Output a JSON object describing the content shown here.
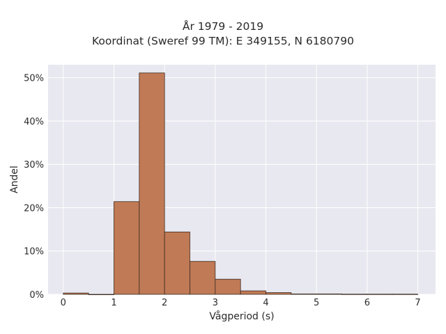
{
  "chart_data": {
    "type": "bar",
    "title_lines": [
      "År 1979 - 2019",
      "Koordinat (Sweref 99 TM): E 349155, N 6180790"
    ],
    "xlabel": "Vågperiod (s)",
    "ylabel": "Andel",
    "xlim": [
      -0.3,
      7.35
    ],
    "ylim": [
      0,
      53
    ],
    "x_ticks": [
      0,
      1,
      2,
      3,
      4,
      5,
      6,
      7
    ],
    "y_ticks": [
      {
        "value": 0,
        "label": "0%"
      },
      {
        "value": 10,
        "label": "10%"
      },
      {
        "value": 20,
        "label": "20%"
      },
      {
        "value": 30,
        "label": "30%"
      },
      {
        "value": 40,
        "label": "40%"
      },
      {
        "value": 50,
        "label": "50%"
      }
    ],
    "bin_width": 0.5,
    "bins": [
      {
        "start": 0.0,
        "value": 0.3
      },
      {
        "start": 0.5,
        "value": 0.0
      },
      {
        "start": 1.0,
        "value": 21.4
      },
      {
        "start": 1.5,
        "value": 51.1
      },
      {
        "start": 2.0,
        "value": 14.4
      },
      {
        "start": 2.5,
        "value": 7.6
      },
      {
        "start": 3.0,
        "value": 3.5
      },
      {
        "start": 3.5,
        "value": 0.8
      },
      {
        "start": 4.0,
        "value": 0.4
      },
      {
        "start": 4.5,
        "value": 0.1
      },
      {
        "start": 5.0,
        "value": 0.1
      },
      {
        "start": 5.5,
        "value": 0.05
      },
      {
        "start": 6.0,
        "value": 0.05
      },
      {
        "start": 6.5,
        "value": 0.05
      }
    ],
    "grid": true,
    "colors": {
      "bar_fill": "#c07a55",
      "bar_edge": "#3b2a20",
      "plot_bg": "#e8e8f0",
      "grid": "#ffffff"
    }
  }
}
